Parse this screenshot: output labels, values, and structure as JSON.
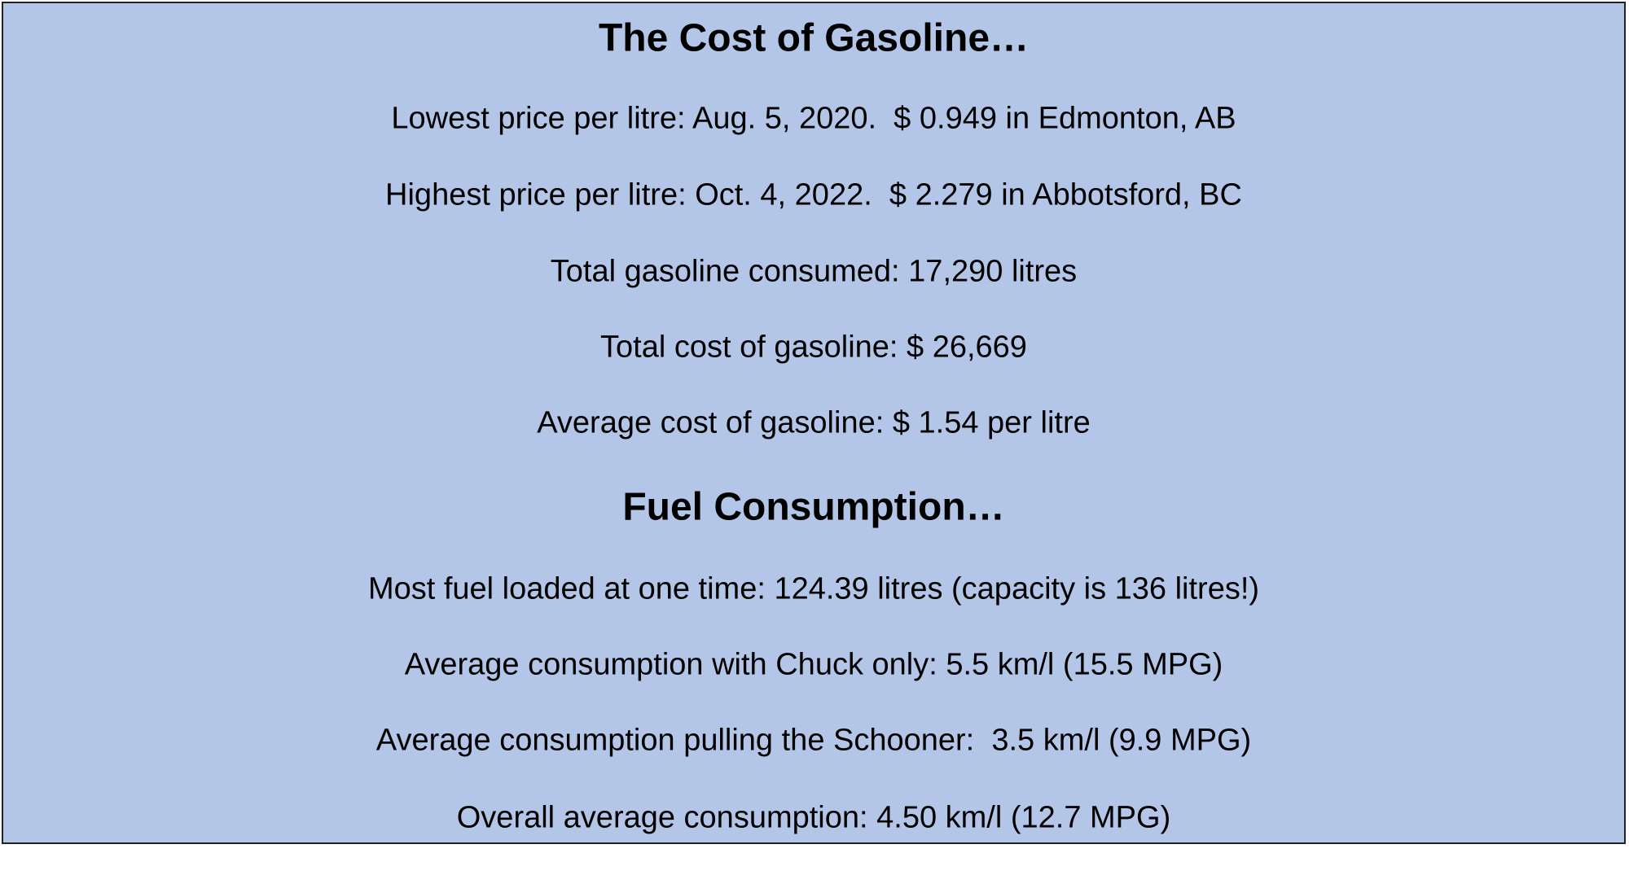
{
  "sections": [
    {
      "heading": "The Cost of Gasoline…",
      "lines": [
        "Lowest price per litre: Aug. 5, 2020.  $ 0.949 in Edmonton, AB",
        "Highest price per litre: Oct. 4, 2022.  $ 2.279 in Abbotsford, BC",
        "Total gasoline consumed: 17,290 litres",
        "Total cost of gasoline: $ 26,669",
        "Average cost of gasoline: $ 1.54 per litre"
      ]
    },
    {
      "heading": "Fuel Consumption…",
      "lines": [
        "Most fuel loaded at one time: 124.39 litres (capacity is 136 litres!)",
        "Average consumption with Chuck only: 5.5 km/l (15.5 MPG)",
        "Average consumption pulling the Schooner:  3.5 km/l (9.9 MPG)",
        "Overall average consumption: 4.50 km/l (12.7 MPG)"
      ]
    }
  ]
}
